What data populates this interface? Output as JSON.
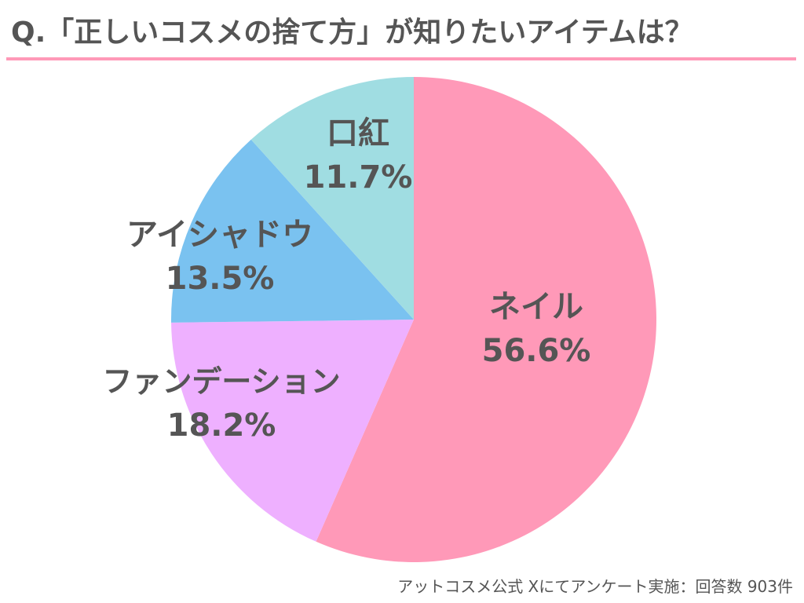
{
  "header": {
    "title": "Q.「正しいコスメの捨て方」が知りたいアイテムは？"
  },
  "footer": {
    "source": "アットコスメ公式 Xにてアンケート実施：回答数 903件"
  },
  "chart_data": {
    "type": "pie",
    "title": "Q.「正しいコスメの捨て方」が知りたいアイテムは？",
    "unit": "%",
    "start_angle_deg": 0,
    "direction": "clockwise",
    "slices": [
      {
        "label": "ネイル",
        "value": 56.6,
        "value_label": "56.6%",
        "color": "#ff99b8"
      },
      {
        "label": "ファンデーション",
        "value": 18.2,
        "value_label": "18.2%",
        "color": "#eeb0ff"
      },
      {
        "label": "アイシャドウ",
        "value": 13.5,
        "value_label": "13.5%",
        "color": "#7ac2f0"
      },
      {
        "label": "口紅",
        "value": 11.7,
        "value_label": "11.7%",
        "color": "#a0dde2"
      }
    ]
  }
}
